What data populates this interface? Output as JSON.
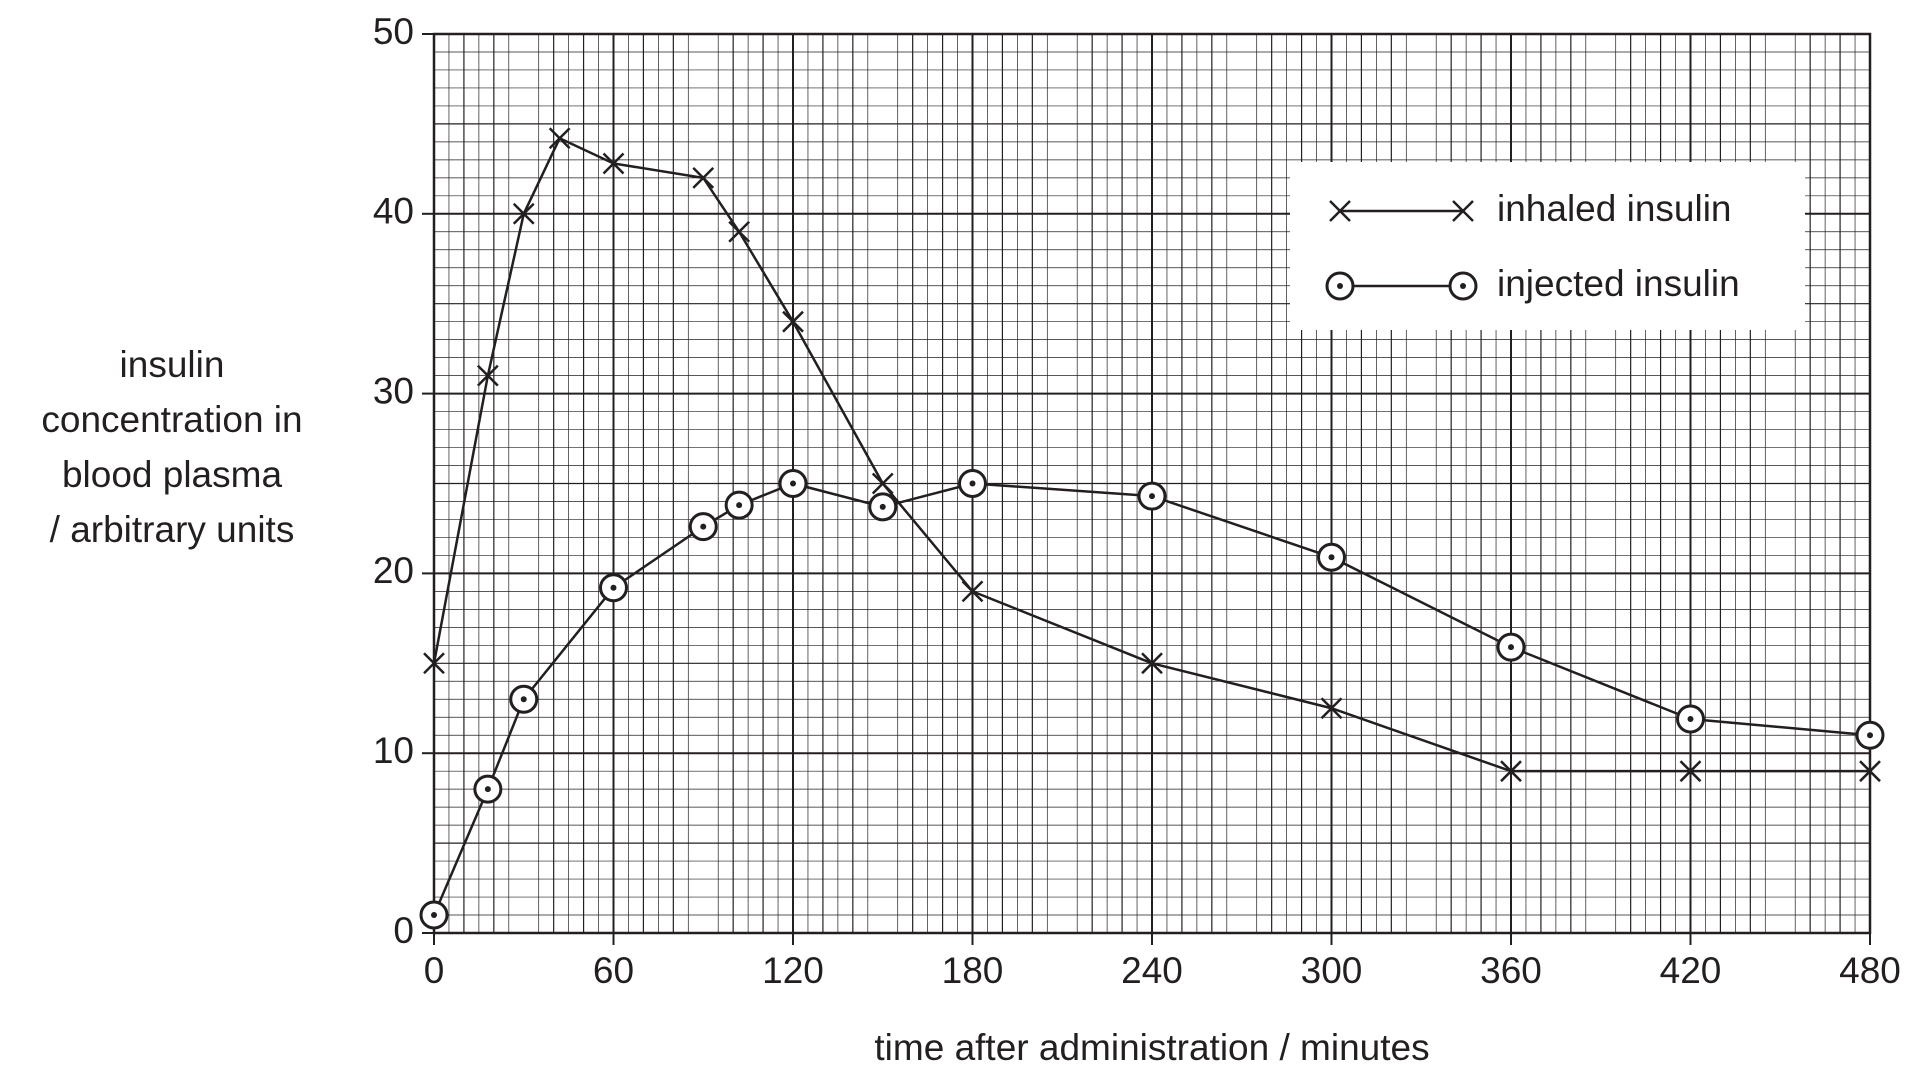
{
  "chart_data": {
    "type": "line",
    "y_label": [
      "insulin",
      "concentration in",
      "blood plasma",
      "/ arbitrary units"
    ],
    "x_label": "time after administration / minutes",
    "xlim": [
      0,
      480
    ],
    "xticks": [
      0,
      60,
      120,
      180,
      240,
      300,
      360,
      420,
      480
    ],
    "ylim": [
      0,
      50
    ],
    "yticks": [
      0,
      10,
      20,
      30,
      40,
      50
    ],
    "grid": true,
    "legend": "upper right",
    "series": [
      {
        "name": "inhaled insulin",
        "color": "#231f20",
        "marker": "x",
        "x": [
          0,
          18,
          30,
          42,
          60,
          90,
          102,
          120,
          150,
          180,
          240,
          300,
          360,
          420,
          480
        ],
        "values": [
          15,
          31,
          40,
          44.2,
          42.8,
          42,
          39,
          34,
          25,
          19,
          15,
          12.5,
          9,
          9,
          9
        ]
      },
      {
        "name": "injected insulin",
        "color": "#231f20",
        "marker": "circle-dot",
        "x": [
          0,
          18,
          30,
          60,
          90,
          102,
          120,
          150,
          180,
          240,
          300,
          360,
          420,
          480
        ],
        "values": [
          1,
          8,
          13,
          19.2,
          22.6,
          23.8,
          25,
          23.7,
          25,
          24.3,
          20.9,
          15.9,
          11.9,
          11
        ]
      }
    ]
  }
}
